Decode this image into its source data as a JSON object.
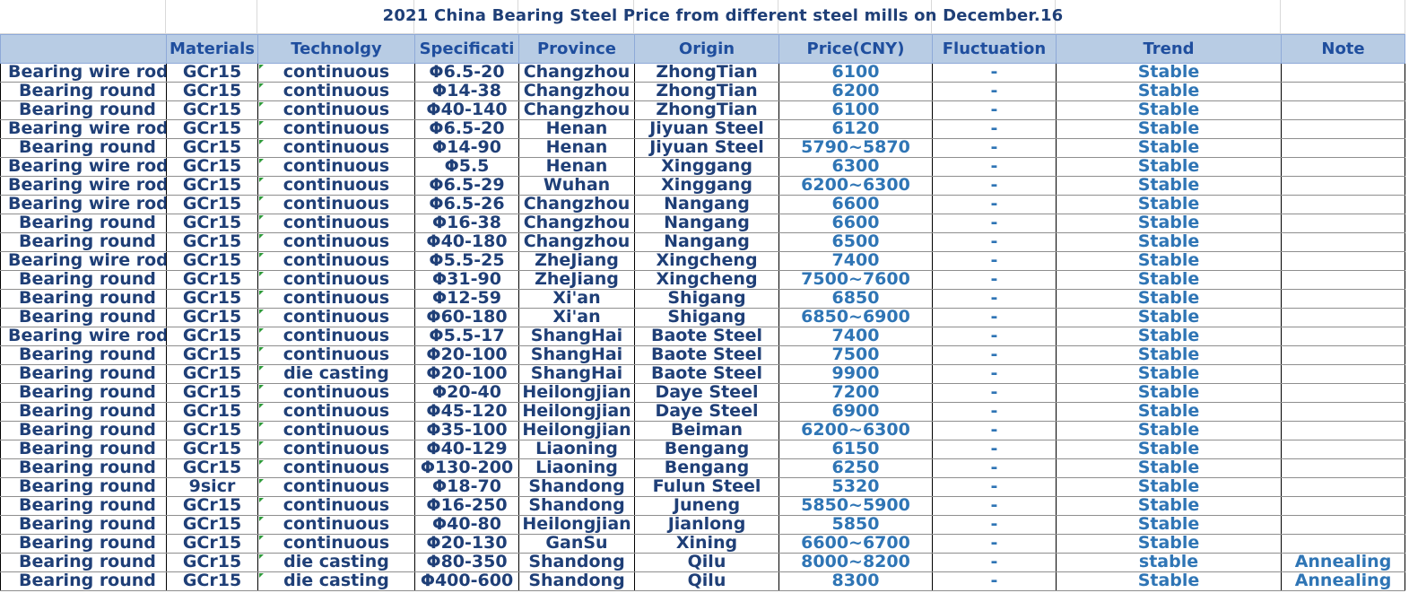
{
  "title": "2021 China Bearing Steel Price from different steel mills on  December.16",
  "columns": [
    "",
    "Materials",
    "Technolgy",
    "Specificati",
    "Province",
    "Origin",
    "Price(CNY)",
    "Fluctuation",
    "Trend",
    "Note"
  ],
  "rows": [
    [
      "Bearing wire rod",
      "GCr15",
      "continuous",
      "Φ6.5-20",
      "Changzhou",
      "ZhongTian",
      "6100",
      "-",
      "Stable",
      ""
    ],
    [
      "Bearing round",
      "GCr15",
      "continuous",
      "Φ14-38",
      "Changzhou",
      "ZhongTian",
      "6200",
      "-",
      "Stable",
      ""
    ],
    [
      "Bearing round",
      "GCr15",
      "continuous",
      "Φ40-140",
      "Changzhou",
      "ZhongTian",
      "6100",
      "-",
      "Stable",
      ""
    ],
    [
      "Bearing wire rod",
      "GCr15",
      "continuous",
      "Φ6.5-20",
      "Henan",
      "Jiyuan Steel",
      "6120",
      "-",
      "Stable",
      ""
    ],
    [
      "Bearing round",
      "GCr15",
      "continuous",
      "Φ14-90",
      "Henan",
      "Jiyuan Steel",
      "5790~5870",
      "-",
      "Stable",
      ""
    ],
    [
      "Bearing wire rod",
      "GCr15",
      "continuous",
      "Φ5.5",
      "Henan",
      "Xinggang",
      "6300",
      "-",
      "Stable",
      ""
    ],
    [
      "Bearing wire rod",
      "GCr15",
      "continuous",
      "Φ6.5-29",
      "Wuhan",
      "Xinggang",
      "6200~6300",
      "-",
      "Stable",
      ""
    ],
    [
      "Bearing wire rod",
      "GCr15",
      "continuous",
      "Φ6.5-26",
      "Changzhou",
      "Nangang",
      "6600",
      "-",
      "Stable",
      ""
    ],
    [
      "Bearing round",
      "GCr15",
      "continuous",
      "Φ16-38",
      "Changzhou",
      "Nangang",
      "6600",
      "-",
      "Stable",
      ""
    ],
    [
      "Bearing round",
      "GCr15",
      "continuous",
      "Φ40-180",
      "Changzhou",
      "Nangang",
      "6500",
      "-",
      "Stable",
      ""
    ],
    [
      "Bearing wire rod",
      "GCr15",
      "continuous",
      "Φ5.5-25",
      "ZheJiang",
      "Xingcheng",
      "7400",
      "-",
      "Stable",
      ""
    ],
    [
      "Bearing round",
      "GCr15",
      "continuous",
      "Φ31-90",
      "ZheJiang",
      "Xingcheng",
      "7500~7600",
      "-",
      "Stable",
      ""
    ],
    [
      "Bearing round",
      "GCr15",
      "continuous",
      "Φ12-59",
      "Xi'an",
      "Shigang",
      "6850",
      "-",
      "Stable",
      ""
    ],
    [
      "Bearing round",
      "GCr15",
      "continuous",
      "Φ60-180",
      "Xi'an",
      "Shigang",
      "6850~6900",
      "-",
      "Stable",
      ""
    ],
    [
      "Bearing wire rod",
      "GCr15",
      "continuous",
      "Φ5.5-17",
      "ShangHai",
      "Baote Steel",
      "7400",
      "-",
      "Stable",
      ""
    ],
    [
      "Bearing round",
      "GCr15",
      "continuous",
      "Φ20-100",
      "ShangHai",
      "Baote Steel",
      "7500",
      "-",
      "Stable",
      ""
    ],
    [
      "Bearing round",
      "GCr15",
      "die casting",
      "Φ20-100",
      "ShangHai",
      "Baote Steel",
      "9900",
      "-",
      "Stable",
      ""
    ],
    [
      "Bearing round",
      "GCr15",
      "continuous",
      "Φ20-40",
      "Heilongjian",
      "Daye  Steel",
      "7200",
      "-",
      "Stable",
      ""
    ],
    [
      "Bearing round",
      "GCr15",
      "continuous",
      "Φ45-120",
      "Heilongjian",
      "Daye  Steel",
      "6900",
      "-",
      "Stable",
      ""
    ],
    [
      "Bearing round",
      "GCr15",
      "continuous",
      "Φ35-100",
      "Heilongjian",
      "Beiman",
      "6200~6300",
      "-",
      "Stable",
      ""
    ],
    [
      "Bearing round",
      "GCr15",
      "continuous",
      "Φ40-129",
      "Liaoning",
      "Bengang",
      "6150",
      "-",
      "Stable",
      ""
    ],
    [
      "Bearing round",
      "GCr15",
      "continuous",
      "Φ130-200",
      "Liaoning",
      "Bengang",
      "6250",
      "-",
      "Stable",
      ""
    ],
    [
      "Bearing round",
      "9sicr",
      "continuous",
      "Φ18-70",
      "Shandong",
      "Fulun Steel",
      "5320",
      "-",
      "Stable",
      ""
    ],
    [
      "Bearing round",
      "GCr15",
      "continuous",
      "Φ16-250",
      "Shandong",
      "Juneng",
      "5850~5900",
      "-",
      "Stable",
      ""
    ],
    [
      "Bearing round",
      "GCr15",
      "continuous",
      "Φ40-80",
      "Heilongjian",
      "Jianlong",
      "5850",
      "-",
      "Stable",
      ""
    ],
    [
      "Bearing round",
      "GCr15",
      "continuous",
      "Φ20-130",
      "GanSu",
      "Xining",
      "6600~6700",
      "-",
      "Stable",
      ""
    ],
    [
      "Bearing round",
      "GCr15",
      "die casting",
      "Φ80-350",
      "Shandong",
      "Qilu",
      "8000~8200",
      "-",
      "stable",
      "Annealing"
    ],
    [
      "Bearing round",
      "GCr15",
      "die casting",
      "Φ400-600",
      "Shandong",
      "Qilu",
      "8300",
      "-",
      "Stable",
      "Annealing"
    ]
  ]
}
